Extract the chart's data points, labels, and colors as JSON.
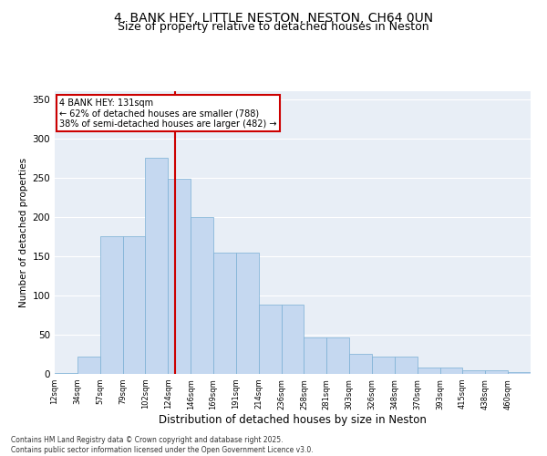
{
  "title1": "4, BANK HEY, LITTLE NESTON, NESTON, CH64 0UN",
  "title2": "Size of property relative to detached houses in Neston",
  "xlabel": "Distribution of detached houses by size in Neston",
  "ylabel": "Number of detached properties",
  "categories": [
    "12sqm",
    "34sqm",
    "57sqm",
    "79sqm",
    "102sqm",
    "124sqm",
    "146sqm",
    "169sqm",
    "191sqm",
    "214sqm",
    "236sqm",
    "258sqm",
    "281sqm",
    "303sqm",
    "326sqm",
    "348sqm",
    "370sqm",
    "393sqm",
    "415sqm",
    "438sqm",
    "460sqm"
  ],
  "values": [
    1,
    22,
    175,
    175,
    275,
    248,
    200,
    155,
    155,
    88,
    88,
    47,
    47,
    25,
    22,
    22,
    8,
    8,
    5,
    5,
    2
  ],
  "bar_color": "#c5d8f0",
  "bar_edge_color": "#7aafd4",
  "vline_color": "#cc0000",
  "annotation_text": "4 BANK HEY: 131sqm\n← 62% of detached houses are smaller (788)\n38% of semi-detached houses are larger (482) →",
  "annotation_box_color": "#cc0000",
  "ylim": [
    0,
    360
  ],
  "yticks": [
    0,
    50,
    100,
    150,
    200,
    250,
    300,
    350
  ],
  "bg_color": "#e8eef6",
  "footer": "Contains HM Land Registry data © Crown copyright and database right 2025.\nContains public sector information licensed under the Open Government Licence v3.0.",
  "title_fontsize": 10,
  "subtitle_fontsize": 9
}
